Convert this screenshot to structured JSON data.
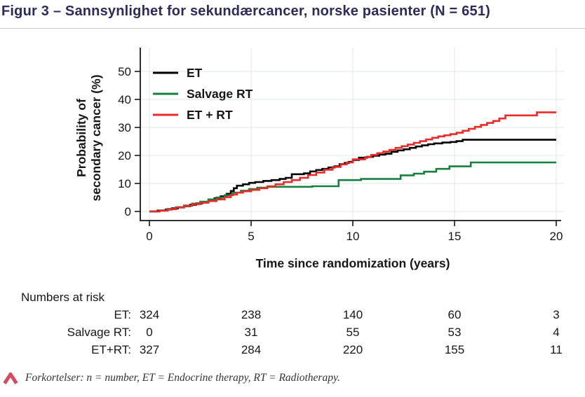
{
  "header": {
    "title": "Figur 3 – Sannsynlighet for sekundærcancer, norske pasienter (N = 651)"
  },
  "chart_data": {
    "type": "line",
    "subtype": "step-cumulative-incidence",
    "xlabel": "Time since randomization (years)",
    "ylabel_lines": [
      "Probability of",
      "secondary cancer (%)"
    ],
    "xlim": [
      0,
      20
    ],
    "ylim": [
      0,
      50
    ],
    "xticks": [
      0,
      5,
      10,
      15,
      20
    ],
    "yticks": [
      0,
      10,
      20,
      30,
      40,
      50
    ],
    "grid": true,
    "grid_color": "#e4eeec",
    "legend_position": "top-left-inside",
    "series": [
      {
        "name": "ET",
        "color": "#000000",
        "points": [
          [
            0,
            0
          ],
          [
            0.4,
            0.3
          ],
          [
            0.8,
            0.7
          ],
          [
            1.1,
            1.1
          ],
          [
            1.4,
            1.5
          ],
          [
            1.7,
            1.9
          ],
          [
            2.0,
            2.4
          ],
          [
            2.3,
            2.9
          ],
          [
            2.6,
            3.4
          ],
          [
            2.9,
            4.0
          ],
          [
            3.2,
            4.7
          ],
          [
            3.5,
            5.4
          ],
          [
            3.8,
            6.3
          ],
          [
            4.0,
            7.3
          ],
          [
            4.15,
            8.3
          ],
          [
            4.3,
            9.2
          ],
          [
            4.6,
            9.7
          ],
          [
            4.9,
            10.2
          ],
          [
            5.2,
            10.5
          ],
          [
            5.6,
            10.9
          ],
          [
            6.0,
            11.2
          ],
          [
            6.4,
            11.6
          ],
          [
            6.7,
            12.0
          ],
          [
            7.0,
            13.3
          ],
          [
            7.6,
            13.6
          ],
          [
            7.9,
            14.3
          ],
          [
            8.2,
            14.8
          ],
          [
            8.5,
            15.2
          ],
          [
            8.8,
            15.7
          ],
          [
            9.1,
            16.1
          ],
          [
            9.35,
            16.9
          ],
          [
            9.6,
            17.3
          ],
          [
            9.8,
            17.7
          ],
          [
            10.0,
            18.4
          ],
          [
            10.3,
            19.2
          ],
          [
            10.7,
            19.5
          ],
          [
            11.0,
            19.9
          ],
          [
            11.3,
            20.3
          ],
          [
            11.6,
            20.6
          ],
          [
            11.9,
            21.3
          ],
          [
            12.2,
            21.8
          ],
          [
            12.5,
            22.2
          ],
          [
            12.8,
            22.7
          ],
          [
            13.1,
            23.2
          ],
          [
            13.4,
            23.6
          ],
          [
            13.7,
            24.0
          ],
          [
            14.0,
            24.3
          ],
          [
            14.4,
            24.6
          ],
          [
            14.8,
            24.8
          ],
          [
            15.1,
            25.1
          ],
          [
            15.4,
            25.6
          ],
          [
            20,
            25.6
          ]
        ]
      },
      {
        "name": "Salvage RT",
        "color": "#17803c",
        "points": [
          [
            0,
            0
          ],
          [
            0.5,
            0.4
          ],
          [
            0.9,
            0.9
          ],
          [
            1.3,
            1.5
          ],
          [
            1.7,
            2.1
          ],
          [
            2.1,
            2.8
          ],
          [
            2.5,
            3.5
          ],
          [
            2.9,
            4.3
          ],
          [
            3.3,
            5.0
          ],
          [
            3.7,
            5.8
          ],
          [
            4.1,
            6.7
          ],
          [
            4.5,
            7.4
          ],
          [
            4.9,
            8.0
          ],
          [
            5.3,
            8.5
          ],
          [
            5.8,
            8.8
          ],
          [
            8.0,
            9.0
          ],
          [
            9.3,
            11.2
          ],
          [
            10.4,
            11.6
          ],
          [
            12.35,
            12.9
          ],
          [
            13.0,
            13.5
          ],
          [
            13.5,
            14.2
          ],
          [
            14.1,
            15.2
          ],
          [
            14.75,
            16.1
          ],
          [
            15.8,
            17.5
          ],
          [
            20,
            17.5
          ]
        ]
      },
      {
        "name": "ET + RT",
        "color": "#ea2a27",
        "points": [
          [
            0,
            0
          ],
          [
            0.5,
            0.3
          ],
          [
            0.9,
            0.8
          ],
          [
            1.3,
            1.4
          ],
          [
            1.7,
            2.0
          ],
          [
            2.1,
            2.6
          ],
          [
            2.5,
            3.1
          ],
          [
            2.9,
            3.7
          ],
          [
            3.3,
            4.3
          ],
          [
            3.7,
            5.1
          ],
          [
            4.0,
            6.0
          ],
          [
            4.3,
            6.7
          ],
          [
            4.6,
            7.2
          ],
          [
            5.0,
            7.7
          ],
          [
            5.4,
            8.3
          ],
          [
            5.8,
            9.0
          ],
          [
            6.2,
            9.7
          ],
          [
            6.6,
            10.5
          ],
          [
            7.0,
            11.2
          ],
          [
            7.4,
            12.0
          ],
          [
            7.8,
            13.0
          ],
          [
            8.2,
            13.9
          ],
          [
            8.6,
            14.9
          ],
          [
            9.0,
            15.9
          ],
          [
            9.4,
            16.8
          ],
          [
            9.7,
            17.5
          ],
          [
            10.0,
            18.6
          ],
          [
            10.6,
            19.4
          ],
          [
            10.9,
            20.2
          ],
          [
            11.2,
            20.8
          ],
          [
            11.5,
            21.4
          ],
          [
            11.8,
            22.0
          ],
          [
            12.1,
            22.7
          ],
          [
            12.4,
            23.3
          ],
          [
            12.7,
            23.9
          ],
          [
            13.0,
            24.5
          ],
          [
            13.3,
            25.1
          ],
          [
            13.6,
            25.7
          ],
          [
            13.9,
            26.3
          ],
          [
            14.2,
            26.8
          ],
          [
            14.5,
            27.2
          ],
          [
            14.8,
            27.6
          ],
          [
            15.1,
            28.1
          ],
          [
            15.4,
            28.8
          ],
          [
            15.7,
            29.5
          ],
          [
            16.0,
            30.2
          ],
          [
            16.3,
            30.9
          ],
          [
            16.6,
            31.6
          ],
          [
            16.9,
            32.3
          ],
          [
            17.2,
            33.2
          ],
          [
            17.5,
            34.3
          ],
          [
            19.05,
            35.4
          ],
          [
            20,
            35.4
          ]
        ]
      }
    ]
  },
  "numbers_at_risk": {
    "title": "Numbers at risk",
    "times": [
      0,
      5,
      10,
      15,
      20
    ],
    "rows": [
      {
        "label": "ET:",
        "values": [
          "324",
          "238",
          "140",
          "60",
          "3"
        ]
      },
      {
        "label": "Salvage RT:",
        "values": [
          "0",
          "31",
          "55",
          "53",
          "4"
        ]
      },
      {
        "label": "ET+RT:",
        "values": [
          "327",
          "284",
          "220",
          "155",
          "11"
        ]
      }
    ]
  },
  "footnote": {
    "icon": "caret-up-icon",
    "icon_color": "#d9485c",
    "text": "Forkortelser: n = number, ET = Endocrine therapy, RT = Radiotherapy."
  },
  "colors": {
    "title": "#2d2a5c",
    "axis": "#161616",
    "rule": "#c6c6c6"
  }
}
